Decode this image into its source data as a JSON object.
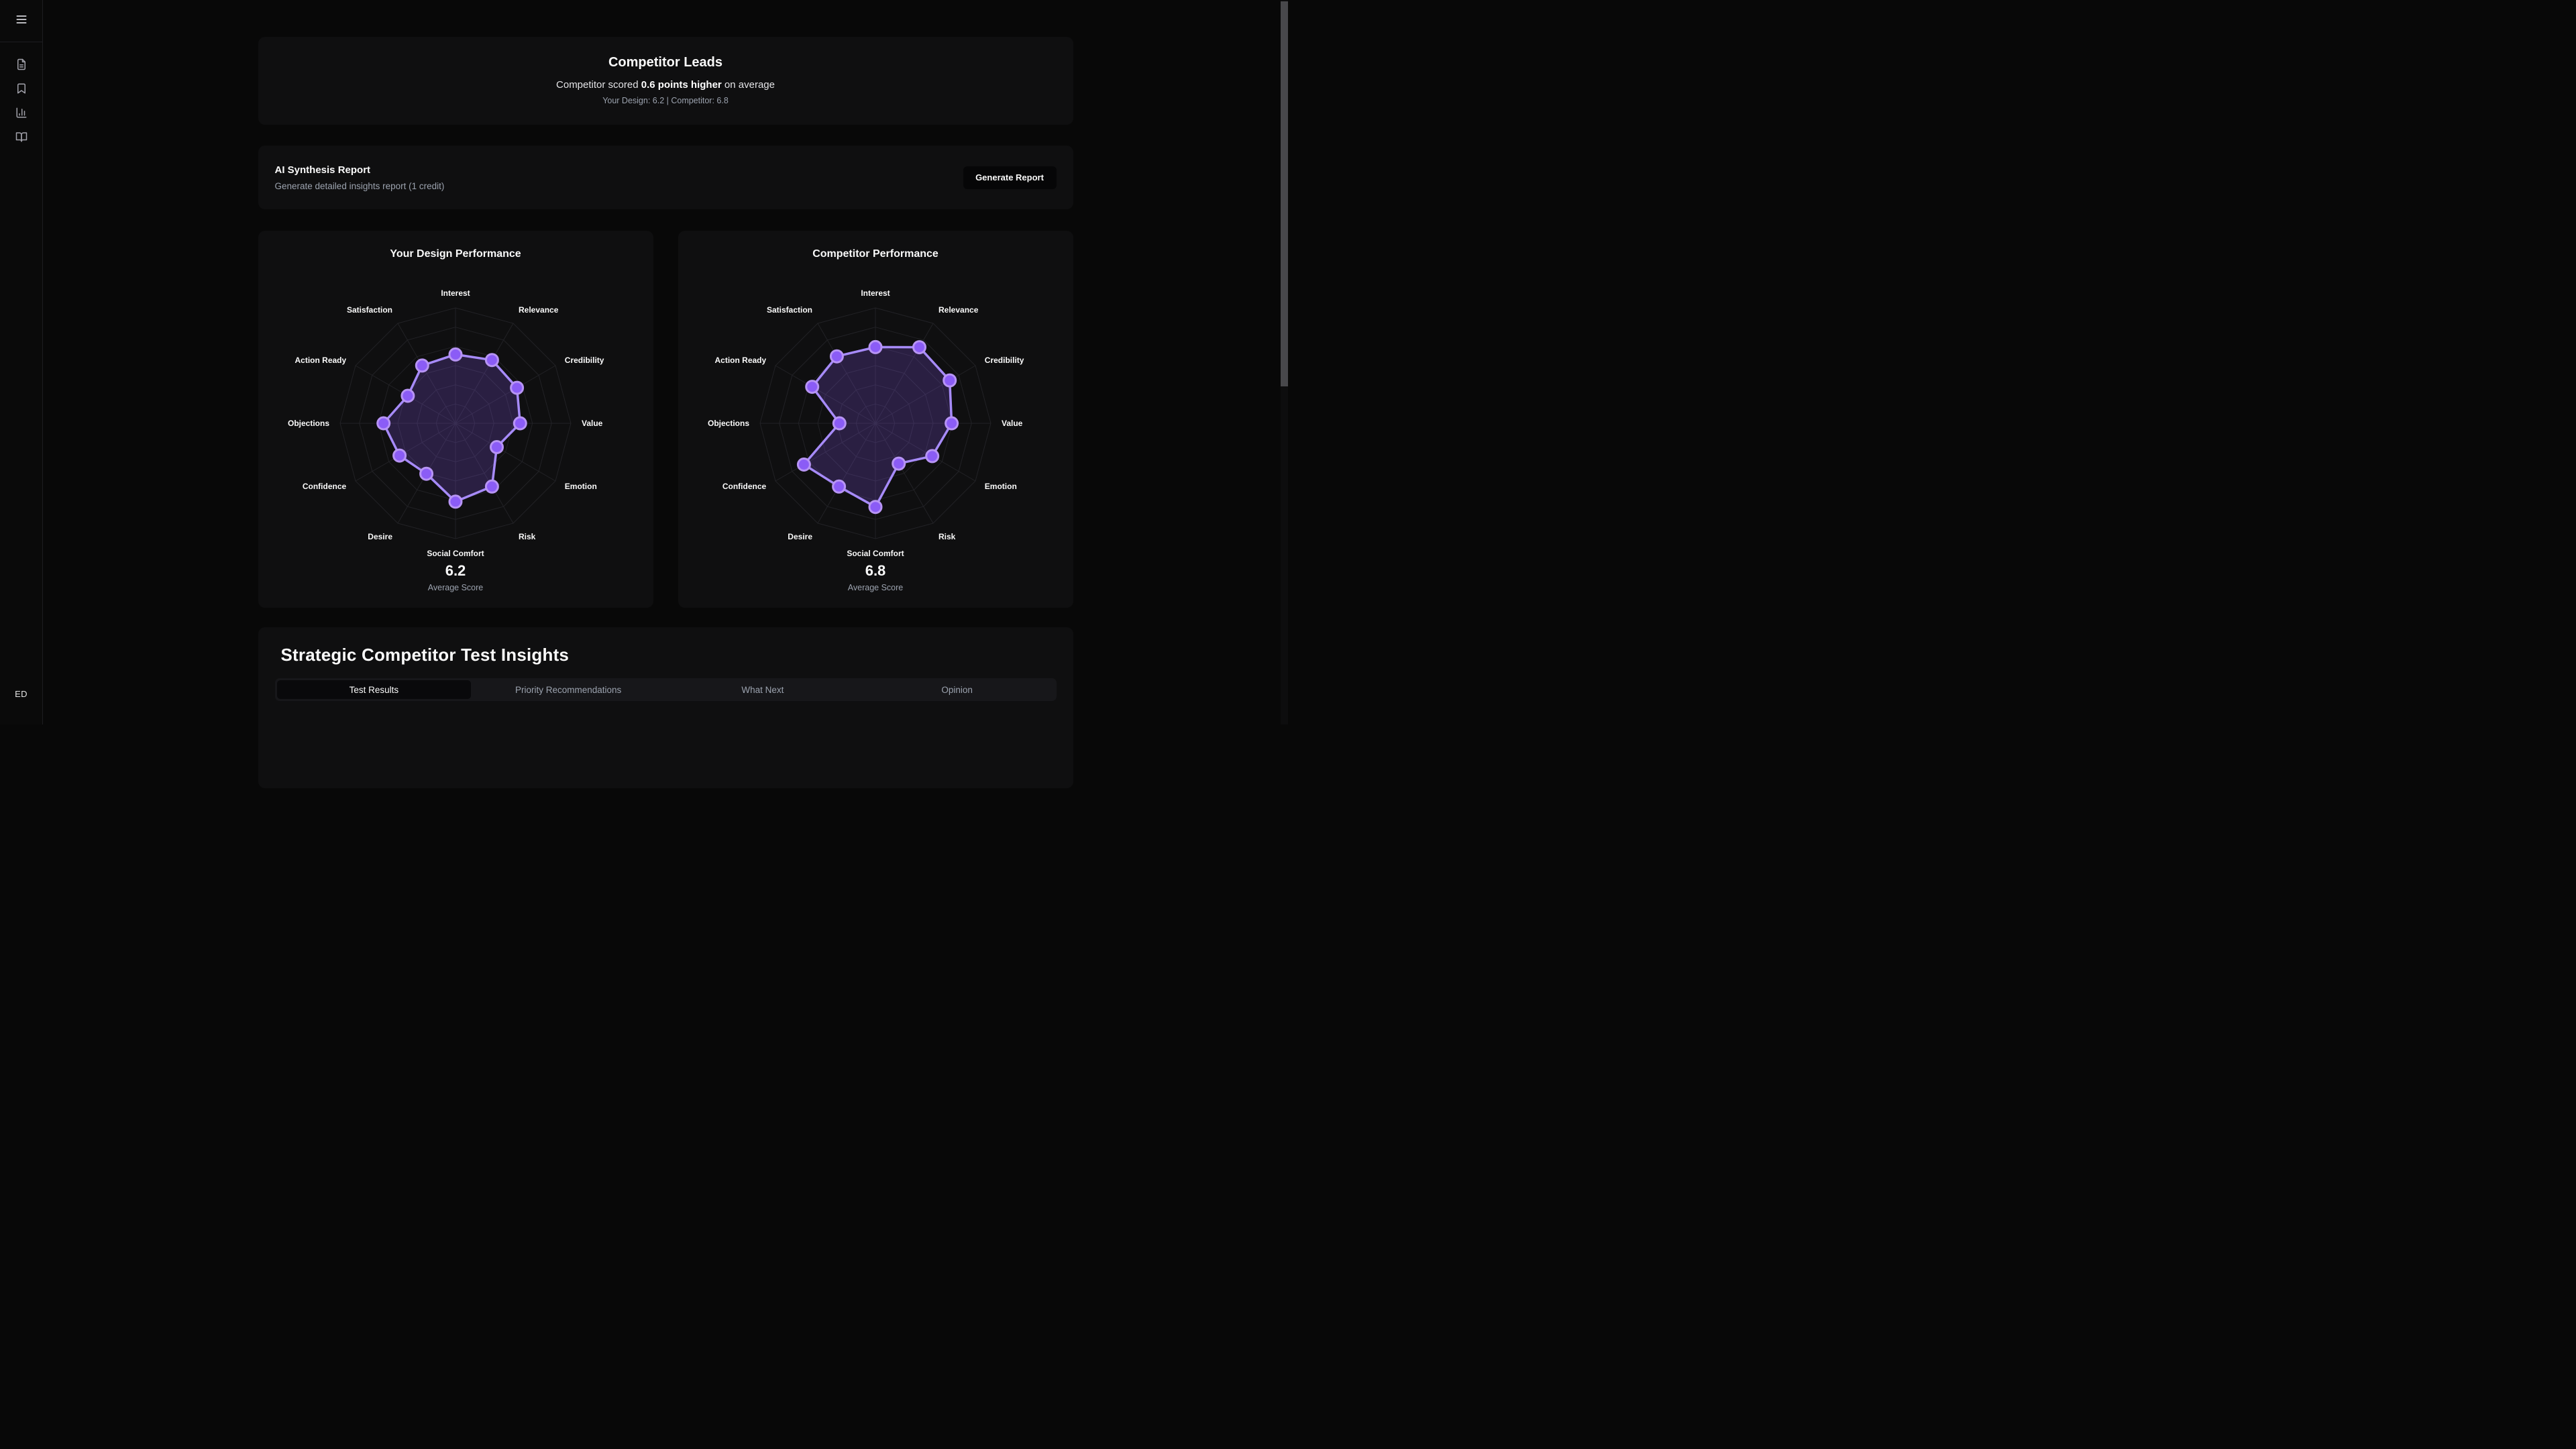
{
  "colors": {
    "accent_purple": "#8b5cf6",
    "line_purple": "#a78bfa",
    "dot_ring_purple": "#b794f4",
    "grid_line": "#222226",
    "card_bg": "#0f0f10",
    "page_bg": "#080808",
    "muted_text": "#9ca3af"
  },
  "sidebar": {
    "menu_icon": "menu-icon",
    "nav_items": [
      {
        "icon": "file-text-icon"
      },
      {
        "icon": "bookmark-icon"
      },
      {
        "icon": "bar-chart-icon"
      },
      {
        "icon": "book-open-icon"
      }
    ],
    "user_initials": "ED"
  },
  "header": {
    "title": "Competitor Leads",
    "subtitle_prefix": "Competitor scored ",
    "subtitle_bold": "0.6 points higher",
    "subtitle_suffix": " on average",
    "comparison": "Your Design: 6.2 | Competitor: 6.8"
  },
  "ai_report": {
    "title": "AI Synthesis Report",
    "description": "Generate detailed insights report (1 credit)",
    "button_label": "Generate Report"
  },
  "chart_data": [
    {
      "type": "radar",
      "title": "Your Design Performance",
      "categories": [
        "Interest",
        "Relevance",
        "Credibility",
        "Value",
        "Emotion",
        "Risk",
        "Social Comfort",
        "Desire",
        "Confidence",
        "Objections",
        "Action Ready",
        "Satisfaction"
      ],
      "series": [
        {
          "name": "Your Design",
          "values": [
            6.5,
            6.9,
            6.7,
            6.1,
            4.5,
            6.9,
            7.4,
            5.5,
            6.1,
            6.8,
            5.2,
            6.3
          ]
        }
      ],
      "ylim": [
        0,
        10.9
      ],
      "rings": 6,
      "grid": true,
      "legend": false,
      "average_score": "6.2",
      "average_label": "Average Score"
    },
    {
      "type": "radar",
      "title": "Competitor Performance",
      "categories": [
        "Interest",
        "Relevance",
        "Credibility",
        "Value",
        "Emotion",
        "Risk",
        "Social Comfort",
        "Desire",
        "Confidence",
        "Objections",
        "Action Ready",
        "Satisfaction"
      ],
      "series": [
        {
          "name": "Competitor",
          "values": [
            7.2,
            8.3,
            8.1,
            7.2,
            6.2,
            4.4,
            7.9,
            6.9,
            7.8,
            3.4,
            6.9,
            7.3
          ]
        }
      ],
      "ylim": [
        0,
        10.9
      ],
      "rings": 6,
      "grid": true,
      "legend": false,
      "average_score": "6.8",
      "average_label": "Average Score"
    }
  ],
  "insights": {
    "title": "Strategic Competitor Test Insights",
    "tabs": [
      {
        "label": "Test Results",
        "active": true
      },
      {
        "label": "Priority Recommendations",
        "active": false
      },
      {
        "label": "What Next",
        "active": false
      },
      {
        "label": "Opinion",
        "active": false
      }
    ]
  }
}
